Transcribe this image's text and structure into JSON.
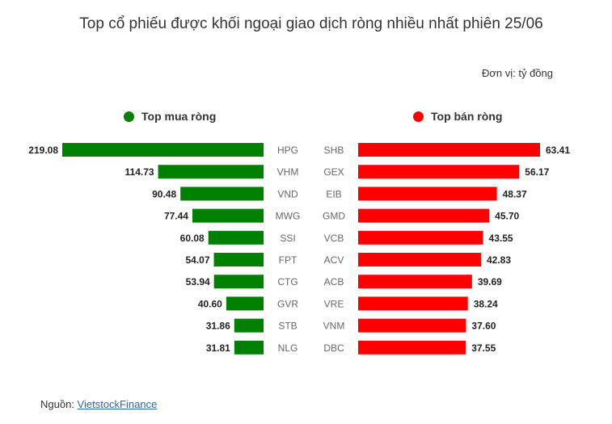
{
  "header": {
    "title": "Top cổ phiếu được khối ngoại giao dịch ròng nhiều nhất phiên 25/06",
    "unit": "Đơn vị: tỷ đồng"
  },
  "footer": {
    "source_label": "Nguồn: ",
    "source_link": "VietstockFinance"
  },
  "colors": {
    "buy": "#008000",
    "sell": "#ff0000"
  },
  "chart_data": {
    "type": "bar",
    "title": "Top cổ phiếu được khối ngoại giao dịch ròng nhiều nhất phiên 25/06",
    "unit": "Đơn vị: tỷ đồng",
    "legend": [
      "Top mua ròng",
      "Top bán ròng"
    ],
    "series": [
      {
        "name": "Top mua ròng",
        "categories": [
          "HPG",
          "VHM",
          "VND",
          "MWG",
          "SSI",
          "FPT",
          "CTG",
          "GVR",
          "STB",
          "NLG"
        ],
        "values": [
          219.08,
          114.73,
          90.48,
          77.44,
          60.08,
          54.07,
          53.94,
          40.6,
          31.86,
          31.81
        ],
        "labels": [
          "219.08",
          "114.73",
          "90.48",
          "77.44",
          "60.08",
          "54.07",
          "53.94",
          "40.60",
          "31.86",
          "31.81"
        ]
      },
      {
        "name": "Top bán ròng",
        "categories": [
          "SHB",
          "GEX",
          "EIB",
          "GMD",
          "VCB",
          "ACV",
          "ACB",
          "VRE",
          "VNM",
          "DBC"
        ],
        "values": [
          63.41,
          56.17,
          48.37,
          45.7,
          43.55,
          42.83,
          39.69,
          38.24,
          37.6,
          37.55
        ],
        "labels": [
          "63.41",
          "56.17",
          "48.37",
          "45.70",
          "43.55",
          "42.83",
          "39.69",
          "38.24",
          "37.60",
          "37.55"
        ]
      }
    ]
  }
}
